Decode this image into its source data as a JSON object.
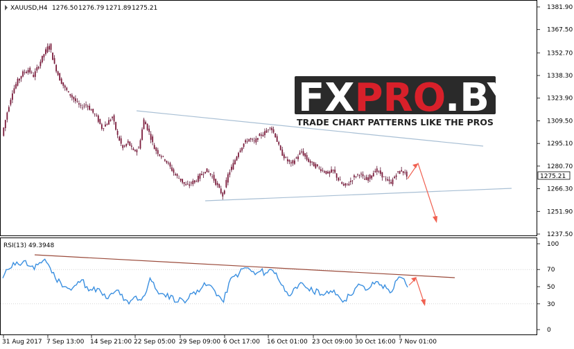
{
  "header": {
    "symbol": "XAUUSD,H4",
    "open": "1276.50",
    "high": "1276.79",
    "low": "1271.89",
    "close": "1275.21"
  },
  "watermark": {
    "brand": "FXPRO.BY",
    "tagline": "TRADE CHART PATTERNS LIKE THE PROS"
  },
  "price_axis": [
    "1381.90",
    "1367.50",
    "1352.70",
    "1338.30",
    "1323.90",
    "1309.50",
    "1295.10",
    "1280.70",
    "1266.30",
    "1251.90",
    "1237.50"
  ],
  "current_price": "1275.21",
  "rsi": {
    "label": "RSI(13) 49.3948",
    "axis": [
      "100",
      "70",
      "50",
      "30",
      "0"
    ]
  },
  "time_axis": [
    "31 Aug 2017",
    "7 Sep 13:00",
    "14 Sep 21:00",
    "22 Sep 05:00",
    "29 Sep 09:00",
    "6 Oct 17:00",
    "16 Oct 01:00",
    "23 Oct 09:00",
    "30 Oct 16:00",
    "7 Nov 01:00"
  ],
  "colors": {
    "candles": "#7a1a3a",
    "rsi_line": "#3a8fe0",
    "trendline_upper": "#9fb4c8",
    "trendline_lower": "#9fb4c8",
    "rsi_trend": "#9a3a2a",
    "arrow": "#f06050",
    "current_price_bg": "#ffffff",
    "logo_red": "#d8202a",
    "logo_dark": "#2a2a2a"
  },
  "chart_data": [
    {
      "type": "candlestick",
      "title": "XAUUSD,H4",
      "ylim": [
        1237.5,
        1381.9
      ],
      "x": [
        "31 Aug 2017",
        "7 Sep 13:00",
        "14 Sep 21:00",
        "22 Sep 05:00",
        "29 Sep 09:00",
        "6 Oct 17:00",
        "16 Oct 01:00",
        "23 Oct 09:00",
        "30 Oct 16:00",
        "7 Nov 01:00"
      ],
      "close_path": [
        1300,
        1315,
        1328,
        1335,
        1340,
        1342,
        1338,
        1345,
        1352,
        1358,
        1345,
        1336,
        1330,
        1326,
        1322,
        1318,
        1320,
        1316,
        1312,
        1305,
        1308,
        1312,
        1300,
        1292,
        1296,
        1290,
        1292,
        1310,
        1302,
        1292,
        1288,
        1285,
        1280,
        1275,
        1272,
        1268,
        1270,
        1272,
        1276,
        1278,
        1274,
        1268,
        1262,
        1275,
        1282,
        1290,
        1295,
        1298,
        1296,
        1300,
        1302,
        1306,
        1300,
        1290,
        1285,
        1282,
        1286,
        1290,
        1285,
        1282,
        1280,
        1278,
        1276,
        1278,
        1272,
        1268,
        1270,
        1274,
        1276,
        1272,
        1274,
        1278,
        1276,
        1272,
        1270,
        1276,
        1278,
        1275
      ],
      "last_close": 1275.21
    },
    {
      "type": "line",
      "title": "RSI(13) 49.3948",
      "ylim": [
        0,
        100
      ],
      "levels": [
        70,
        30
      ],
      "values": [
        60,
        70,
        78,
        76,
        80,
        74,
        70,
        78,
        82,
        72,
        60,
        55,
        50,
        46,
        52,
        58,
        50,
        46,
        48,
        40,
        36,
        42,
        46,
        34,
        30,
        38,
        35,
        40,
        60,
        48,
        42,
        38,
        40,
        32,
        36,
        34,
        42,
        46,
        50,
        52,
        48,
        40,
        32,
        54,
        62,
        66,
        72,
        70,
        64,
        68,
        66,
        70,
        66,
        52,
        44,
        42,
        48,
        54,
        48,
        44,
        46,
        40,
        42,
        46,
        38,
        34,
        40,
        48,
        52,
        46,
        50,
        56,
        52,
        48,
        44,
        58,
        60,
        49.39
      ],
      "last_value": 49.3948
    }
  ]
}
